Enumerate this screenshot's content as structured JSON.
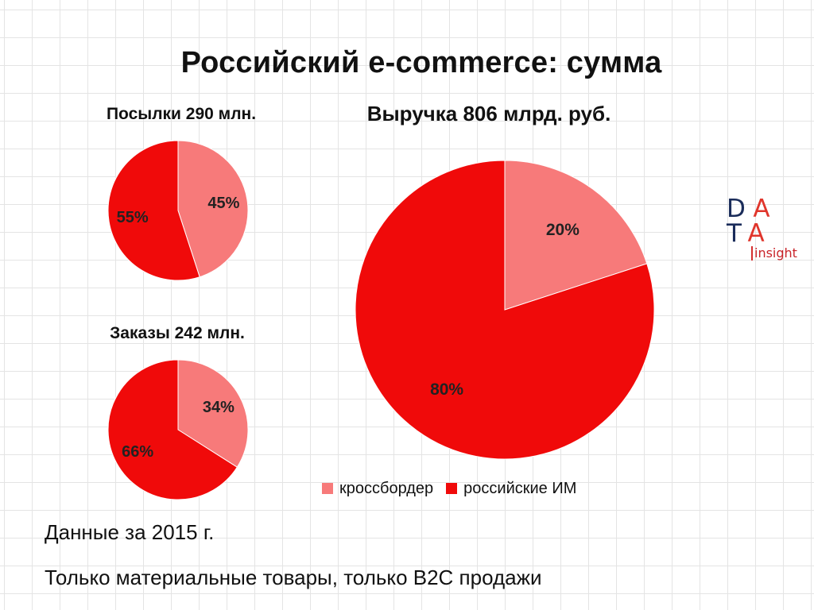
{
  "title": "Российский e-commerce: сумма",
  "logo": {
    "row1": [
      "D",
      "A"
    ],
    "row2": [
      "T",
      "A"
    ],
    "sub": "insight"
  },
  "colors": {
    "crossborder": "#f77a7a",
    "russian": "#f00a0a",
    "label_text": "#222222"
  },
  "chart_data": [
    {
      "type": "pie",
      "title": "Посылки 290 млн.",
      "categories": [
        "кроссбордер",
        "российские ИМ"
      ],
      "values": [
        45,
        55
      ],
      "labels": [
        "45%",
        "55%"
      ]
    },
    {
      "type": "pie",
      "title": "Заказы 242 млн.",
      "categories": [
        "кроссбордер",
        "российские ИМ"
      ],
      "values": [
        34,
        66
      ],
      "labels": [
        "34%",
        "66%"
      ]
    },
    {
      "type": "pie",
      "title": "Выручка 806 млрд. руб.",
      "categories": [
        "кроссбордер",
        "российские ИМ"
      ],
      "values": [
        20,
        80
      ],
      "labels": [
        "20%",
        "80%"
      ]
    }
  ],
  "legend": [
    {
      "label": "кроссбордер",
      "color": "#f77a7a"
    },
    {
      "label": "российские ИМ",
      "color": "#f00a0a"
    }
  ],
  "notes": [
    "Данные за 2015 г.",
    "Только материальные товары, только B2C продажи"
  ]
}
